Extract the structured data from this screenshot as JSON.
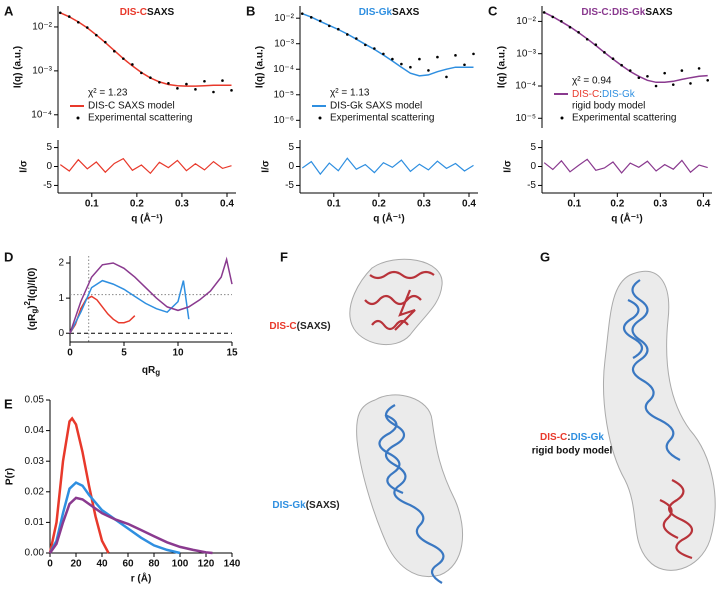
{
  "figure": {
    "panel_labels": [
      "A",
      "B",
      "C",
      "D",
      "E",
      "F",
      "G"
    ],
    "structures": [
      {
        "label_parts": [
          "DIS-C",
          "(SAXS)"
        ],
        "colors": [
          "#e8392b",
          "#222222"
        ]
      },
      {
        "label_parts": [
          "DIS-Gk",
          "(SAXS)"
        ],
        "colors": [
          "#2f8fe0",
          "#222222"
        ]
      },
      {
        "label_parts": [
          "DIS-C",
          ":",
          "DIS-Gk"
        ],
        "colors": [
          "#e8392b",
          "#222222",
          "#2f8fe0"
        ],
        "label_line2": "rigid body model"
      }
    ]
  },
  "chart_data": [
    {
      "type": "line",
      "title": "DIS-C",
      "title_suffix": "SAXS",
      "title_color": "#e8392b",
      "log_y": true,
      "xlim": [
        0.025,
        0.42
      ],
      "ylim": [
        5e-05,
        0.03
      ],
      "xticks": [
        0.1,
        0.2,
        0.3,
        0.4
      ],
      "xlabel": "q (Å⁻¹)",
      "yticks": [
        {
          "value": 0.0001,
          "label": "10⁻⁴"
        },
        {
          "value": 0.001,
          "label": "10⁻³"
        },
        {
          "value": 0.01,
          "label": "10⁻²"
        }
      ],
      "ylabel": "I(q) (a.u.)",
      "annotation": "χ² = 1.23",
      "x": [
        0.03,
        0.05,
        0.07,
        0.09,
        0.11,
        0.13,
        0.15,
        0.17,
        0.19,
        0.21,
        0.23,
        0.25,
        0.27,
        0.29,
        0.31,
        0.33,
        0.35,
        0.37,
        0.39,
        0.41
      ],
      "series": [
        {
          "name": "DIS-C SAXS model",
          "color": "#e8392b",
          "style": "line",
          "values": [
            0.021,
            0.017,
            0.013,
            0.0095,
            0.0066,
            0.0044,
            0.0029,
            0.0019,
            0.0013,
            0.00092,
            0.00069,
            0.00056,
            0.00049,
            0.00046,
            0.00045,
            0.00045,
            0.00046,
            0.00047,
            0.00047,
            0.00047
          ]
        },
        {
          "name": "Experimental scattering",
          "color": "#000000",
          "style": "points",
          "values": [
            0.021,
            0.0172,
            0.0128,
            0.0097,
            0.0065,
            0.0045,
            0.0028,
            0.0019,
            0.0014,
            0.0009,
            0.0007,
            0.00055,
            0.00052,
            0.0004,
            0.0005,
            0.00038,
            0.00058,
            0.00033,
            0.0006,
            0.00036
          ]
        }
      ],
      "residuals": {
        "ylabel": "I/σ",
        "ylim": [
          -7,
          7
        ],
        "yticks": [
          -5,
          0,
          5
        ],
        "color": "#e8392b",
        "values": [
          0.5,
          -1.2,
          1.8,
          -0.6,
          1.2,
          -1.5,
          0.8,
          2.1,
          -1.0,
          0.4,
          -1.8,
          1.1,
          -0.3,
          1.6,
          -1.1,
          0.7,
          -0.9,
          1.3,
          -0.5,
          0.2
        ]
      }
    },
    {
      "type": "line",
      "title": "DIS-Gk",
      "title_suffix": "SAXS",
      "title_color": "#2f8fe0",
      "log_y": true,
      "xlim": [
        0.025,
        0.42
      ],
      "ylim": [
        5e-07,
        0.03
      ],
      "xticks": [
        0.1,
        0.2,
        0.3,
        0.4
      ],
      "xlabel": "q (Å⁻¹)",
      "yticks": [
        {
          "value": 1e-06,
          "label": "10⁻⁶"
        },
        {
          "value": 1e-05,
          "label": "10⁻⁵"
        },
        {
          "value": 0.0001,
          "label": "10⁻⁴"
        },
        {
          "value": 0.001,
          "label": "10⁻³"
        },
        {
          "value": 0.01,
          "label": "10⁻²"
        }
      ],
      "ylabel": "I(q) (a.u.)",
      "annotation": "χ² = 1.13",
      "x": [
        0.03,
        0.05,
        0.07,
        0.09,
        0.11,
        0.13,
        0.15,
        0.17,
        0.19,
        0.21,
        0.23,
        0.25,
        0.27,
        0.29,
        0.31,
        0.33,
        0.35,
        0.37,
        0.39,
        0.41
      ],
      "series": [
        {
          "name": "DIS-Gk SAXS model",
          "color": "#2f8fe0",
          "style": "line",
          "values": [
            0.015,
            0.011,
            0.0075,
            0.0052,
            0.0036,
            0.0024,
            0.0015,
            0.00095,
            0.0006,
            0.00036,
            0.00021,
            0.00012,
            7e-05,
            5.5e-05,
            6e-05,
            8e-05,
            0.0001,
            0.00012,
            0.00012,
            0.00012
          ]
        },
        {
          "name": "Experimental scattering",
          "color": "#000000",
          "style": "points",
          "values": [
            0.015,
            0.0108,
            0.0078,
            0.005,
            0.0037,
            0.0023,
            0.0016,
            0.0009,
            0.00065,
            0.0004,
            0.00025,
            0.00016,
            0.00012,
            0.00025,
            9e-05,
            0.0003,
            5e-05,
            0.00035,
            0.00015,
            0.0004
          ]
        }
      ],
      "residuals": {
        "ylabel": "I/σ",
        "ylim": [
          -7,
          7
        ],
        "yticks": [
          -5,
          0,
          5
        ],
        "color": "#2f8fe0",
        "values": [
          -0.4,
          1.3,
          -2.0,
          0.9,
          -1.1,
          2.2,
          -0.7,
          0.5,
          -1.6,
          1.0,
          -0.2,
          1.7,
          -1.3,
          0.6,
          -0.9,
          1.4,
          -0.5,
          0.8,
          -1.2,
          0.3
        ]
      }
    },
    {
      "type": "line",
      "title": "DIS-C:DIS-Gk",
      "title_suffix": "SAXS",
      "title_color": "#8a3a8f",
      "log_y": true,
      "xlim": [
        0.025,
        0.42
      ],
      "ylim": [
        5e-06,
        0.03
      ],
      "xticks": [
        0.1,
        0.2,
        0.3,
        0.4
      ],
      "xlabel": "q (Å⁻¹)",
      "yticks": [
        {
          "value": 1e-05,
          "label": "10⁻⁵"
        },
        {
          "value": 0.0001,
          "label": "10⁻⁴"
        },
        {
          "value": 0.001,
          "label": "10⁻³"
        },
        {
          "value": 0.01,
          "label": "10⁻²"
        }
      ],
      "ylabel": "I(q) (a.u.)",
      "annotation": "χ² = 0.94",
      "x": [
        0.03,
        0.05,
        0.07,
        0.09,
        0.11,
        0.13,
        0.15,
        0.17,
        0.19,
        0.21,
        0.23,
        0.25,
        0.27,
        0.29,
        0.31,
        0.33,
        0.35,
        0.37,
        0.39,
        0.41
      ],
      "series": [
        {
          "name_parts": [
            "DIS-C",
            ":",
            "DIS-Gk"
          ],
          "name_part_colors": [
            "#e8392b",
            "#222222",
            "#2f8fe0"
          ],
          "name_line2": "rigid body model",
          "color": "#8a3a8f",
          "style": "line",
          "values": [
            0.019,
            0.014,
            0.0098,
            0.0068,
            0.0045,
            0.0029,
            0.0018,
            0.0011,
            0.00068,
            0.00043,
            0.00028,
            0.0002,
            0.00015,
            0.00013,
            0.00013,
            0.00014,
            0.00016,
            0.00018,
            0.0002,
            0.00021
          ]
        },
        {
          "name": "Experimental scattering",
          "color": "#000000",
          "style": "points",
          "values": [
            0.019,
            0.0138,
            0.0101,
            0.0066,
            0.0046,
            0.0028,
            0.0019,
            0.0011,
            0.0007,
            0.00044,
            0.0003,
            0.00018,
            0.0002,
            0.0001,
            0.00025,
            0.00011,
            0.0003,
            0.00012,
            0.00035,
            0.00015
          ]
        }
      ],
      "residuals": {
        "ylabel": "I/σ",
        "ylim": [
          -7,
          7
        ],
        "yticks": [
          -5,
          0,
          5
        ],
        "color": "#8a3a8f",
        "values": [
          1.0,
          -0.8,
          1.5,
          -1.4,
          0.3,
          1.9,
          -1.0,
          -0.4,
          1.2,
          -1.7,
          0.9,
          -0.2,
          1.4,
          -1.2,
          0.5,
          -0.7,
          1.6,
          -1.5,
          0.4,
          -0.3
        ]
      }
    },
    {
      "type": "line",
      "xlim": [
        0,
        15
      ],
      "ylim": [
        -0.25,
        2.2
      ],
      "xticks": [
        0,
        5,
        10,
        15
      ],
      "yticks": [
        0,
        1,
        2
      ],
      "xlabel_parts": [
        "qR",
        "g"
      ],
      "xlabel_shifts": [
        "base",
        "sub"
      ],
      "ylabel_parts": [
        "(qR",
        "g",
        ")",
        "2",
        "I(q)/I(0)"
      ],
      "ylabel_shifts": [
        "base",
        "sub",
        "base",
        "super",
        "base"
      ],
      "vlines": [
        1.73
      ],
      "dotted_hlines": [
        1.1
      ],
      "dashed_hlines": [
        0
      ],
      "series": [
        {
          "color": "#e8392b",
          "x": [
            0,
            0.5,
            1,
            1.5,
            2,
            2.5,
            3,
            3.5,
            4,
            4.5,
            5,
            5.5,
            6
          ],
          "values": [
            0,
            0.25,
            0.7,
            0.97,
            1.05,
            0.95,
            0.75,
            0.55,
            0.4,
            0.3,
            0.3,
            0.35,
            0.5
          ]
        },
        {
          "color": "#2f8fe0",
          "x": [
            0,
            1,
            2,
            3,
            4,
            5,
            6,
            7,
            8,
            9,
            10,
            10.5,
            11
          ],
          "values": [
            0,
            0.6,
            1.3,
            1.5,
            1.4,
            1.25,
            1.05,
            0.85,
            0.7,
            0.6,
            0.9,
            1.5,
            0.4
          ]
        },
        {
          "color": "#8a3a8f",
          "x": [
            0,
            1,
            2,
            3,
            4,
            5,
            6,
            7,
            8,
            9,
            10,
            11,
            12,
            13,
            14,
            14.5,
            15
          ],
          "values": [
            0,
            0.9,
            1.6,
            1.95,
            2.0,
            1.85,
            1.6,
            1.3,
            1.0,
            0.75,
            0.65,
            0.75,
            0.95,
            1.2,
            1.6,
            2.1,
            1.4
          ]
        }
      ]
    },
    {
      "type": "line",
      "xlim": [
        0,
        140
      ],
      "ylim": [
        0,
        0.05
      ],
      "xticks": [
        0,
        20,
        40,
        60,
        80,
        100,
        120,
        140
      ],
      "yticks": [
        {
          "value": 0,
          "label": "0.00"
        },
        {
          "value": 0.01,
          "label": "0.01"
        },
        {
          "value": 0.02,
          "label": "0.02"
        },
        {
          "value": 0.03,
          "label": "0.03"
        },
        {
          "value": 0.04,
          "label": "0.04"
        },
        {
          "value": 0.05,
          "label": "0.05"
        }
      ],
      "xlabel": "r (Å)",
      "ylabel": "P(r)",
      "line_width": 2.5,
      "series": [
        {
          "color": "#e8392b",
          "x": [
            0,
            5,
            10,
            15,
            17,
            20,
            25,
            30,
            35,
            40,
            45
          ],
          "values": [
            0,
            0.01,
            0.03,
            0.043,
            0.044,
            0.042,
            0.033,
            0.022,
            0.012,
            0.004,
            0
          ]
        },
        {
          "color": "#2f8fe0",
          "x": [
            0,
            5,
            10,
            15,
            20,
            25,
            30,
            40,
            50,
            60,
            70,
            80,
            90,
            100
          ],
          "values": [
            0,
            0.004,
            0.013,
            0.021,
            0.023,
            0.022,
            0.019,
            0.014,
            0.011,
            0.008,
            0.005,
            0.0025,
            0.001,
            0
          ]
        },
        {
          "color": "#8a3a8f",
          "x": [
            0,
            5,
            10,
            15,
            20,
            25,
            30,
            40,
            50,
            60,
            70,
            80,
            90,
            100,
            110,
            120,
            125
          ],
          "values": [
            0,
            0.003,
            0.01,
            0.016,
            0.018,
            0.0175,
            0.016,
            0.013,
            0.011,
            0.0095,
            0.0075,
            0.0055,
            0.0035,
            0.002,
            0.001,
            0.0002,
            0
          ]
        }
      ]
    }
  ]
}
